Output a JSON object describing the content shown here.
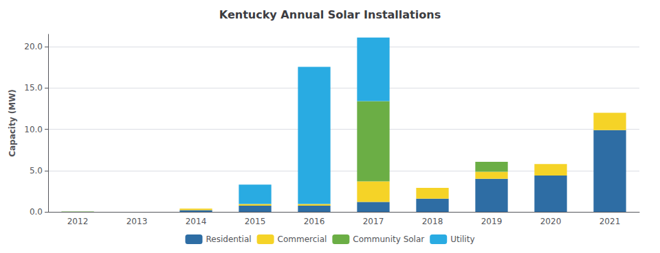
{
  "chart_data": {
    "type": "bar",
    "title": "Kentucky Annual Solar Installations",
    "ylabel": "Capacity (MW)",
    "categories": [
      "2012",
      "2013",
      "2014",
      "2015",
      "2016",
      "2017",
      "2018",
      "2019",
      "2020",
      "2021"
    ],
    "series": [
      {
        "name": "Residential",
        "color": "#2E6DA4",
        "values": [
          0.0,
          0.0,
          0.2,
          0.75,
          0.75,
          1.2,
          1.6,
          4.0,
          4.4,
          9.9
        ]
      },
      {
        "name": "Commercial",
        "color": "#F5D327",
        "values": [
          0.0,
          0.0,
          0.2,
          0.2,
          0.2,
          2.5,
          1.3,
          0.85,
          1.4,
          2.1
        ]
      },
      {
        "name": "Community Solar",
        "color": "#6BAE45",
        "values": [
          0.05,
          0.0,
          0.0,
          0.0,
          0.0,
          9.7,
          0.0,
          1.2,
          0.0,
          0.0
        ]
      },
      {
        "name": "Utility",
        "color": "#29ABE2",
        "values": [
          0.0,
          0.0,
          0.0,
          2.35,
          16.6,
          7.7,
          0.0,
          0.0,
          0.0,
          0.0
        ]
      }
    ],
    "stacked": true,
    "ylim": [
      0,
      21.5
    ],
    "yticks": [
      {
        "value": 0,
        "label": "0.0"
      },
      {
        "value": 5,
        "label": "5.0"
      },
      {
        "value": 10,
        "label": "10.0"
      },
      {
        "value": 15,
        "label": "15.0"
      },
      {
        "value": 20,
        "label": "20.0"
      }
    ],
    "grid": true,
    "legend": "bottom"
  }
}
